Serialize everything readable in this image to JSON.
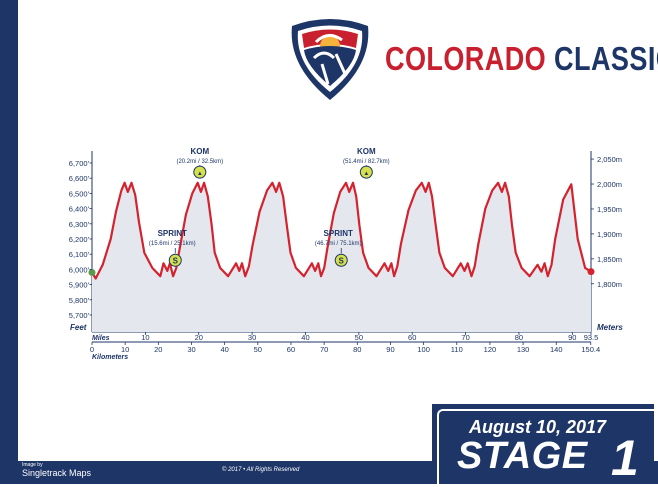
{
  "brand": {
    "word1": "COLORADO",
    "word2": "CLASSIC"
  },
  "stage": {
    "date": "August 10, 2017",
    "label": "STAGE",
    "number": "1"
  },
  "footer": {
    "credit_small": "Image by",
    "credit_brand": "Singletrack Maps",
    "copyright": "© 2017 • All Rights Reserved"
  },
  "colors": {
    "navy": "#1d3567",
    "red": "#d4232e",
    "fill": "#e4e8ee",
    "sprint": "#d6e04a",
    "accent": "#f2b23b"
  },
  "chart_data": {
    "type": "area",
    "left_axis_label": "Feet",
    "right_axis_label": "Meters",
    "x_miles_label": "Miles",
    "x_km_label": "Kilometers",
    "y_feet_range": [
      5700,
      6700
    ],
    "x_miles_range": [
      0,
      93.5
    ],
    "y_ticks_feet": [
      "5,700'",
      "5,800'",
      "5,900'",
      "6,000'",
      "6,100'",
      "6,200'",
      "6,300'",
      "6,400'",
      "6,500'",
      "6,600'",
      "6,700'"
    ],
    "y_tick_feet_values": [
      5700,
      5800,
      5900,
      6000,
      6100,
      6200,
      6300,
      6400,
      6500,
      6600,
      6700
    ],
    "y_ticks_meters": [
      "1,800m",
      "1,850m",
      "1,900m",
      "1,950m",
      "2,000m",
      "2,050m"
    ],
    "y_tick_meter_values": [
      1800,
      1850,
      1900,
      1950,
      2000,
      2050
    ],
    "x_ticks_miles": [
      "10",
      "20",
      "30",
      "40",
      "50",
      "60",
      "70",
      "80",
      "90",
      "93.5"
    ],
    "x_tick_mile_values": [
      10,
      20,
      30,
      40,
      50,
      60,
      70,
      80,
      90,
      93.5
    ],
    "x_ticks_km": [
      "0",
      "10",
      "20",
      "30",
      "40",
      "50",
      "60",
      "70",
      "80",
      "90",
      "100",
      "110",
      "120",
      "130",
      "140",
      "150.4"
    ],
    "x_tick_km_values": [
      0,
      10,
      20,
      30,
      40,
      50,
      60,
      70,
      80,
      90,
      100,
      110,
      120,
      130,
      140,
      150.4
    ],
    "profile": {
      "miles": [
        0,
        0.7,
        2,
        3.5,
        4.5,
        5.5,
        6.1,
        6.7,
        7.4,
        8.1,
        8.8,
        9.8,
        11.3,
        12.8,
        13.4,
        14.1,
        14.6,
        15.2,
        15.8,
        16.4,
        17.6,
        18.8,
        19.8,
        20.4,
        21,
        21.7,
        22.4,
        23,
        24,
        25.5,
        27,
        27.6,
        28.1,
        28.7,
        29.4,
        30.1,
        31.4,
        32.8,
        33.8,
        34.5,
        35.1,
        35.8,
        36.5,
        37.2,
        38.2,
        39.7,
        41.2,
        41.8,
        42.4,
        42.9,
        43.5,
        44.1,
        45.3,
        46.5,
        47.6,
        48.2,
        48.9,
        49.5,
        50.1,
        50.8,
        51.8,
        53.3,
        54.8,
        55.5,
        56.1,
        56.6,
        57.2,
        57.9,
        59.3,
        60.7,
        61.8,
        62.5,
        63.1,
        63.7,
        64.4,
        65.1,
        66.1,
        67.6,
        69.1,
        69.8,
        70.4,
        71.1,
        71.7,
        72.4,
        73.7,
        75,
        76.1,
        76.8,
        77.4,
        78.1,
        78.7,
        79.4,
        80.5,
        82,
        83.5,
        84.2,
        84.8,
        85.4,
        86.1,
        86.8,
        88.3,
        89.8,
        91,
        92.4,
        93.5
      ],
      "feet": [
        5980,
        5940,
        6030,
        6200,
        6380,
        6520,
        6570,
        6510,
        6570,
        6490,
        6310,
        6110,
        6010,
        5955,
        6040,
        5990,
        6040,
        5955,
        6010,
        6130,
        6360,
        6500,
        6570,
        6510,
        6570,
        6480,
        6300,
        6110,
        6010,
        5955,
        6040,
        5990,
        6040,
        5955,
        6020,
        6160,
        6380,
        6520,
        6570,
        6510,
        6570,
        6480,
        6290,
        6110,
        6010,
        5955,
        6040,
        5990,
        6040,
        5955,
        6010,
        6140,
        6370,
        6510,
        6570,
        6510,
        6570,
        6480,
        6290,
        6110,
        6010,
        5955,
        6040,
        5990,
        6040,
        5955,
        6020,
        6170,
        6390,
        6520,
        6570,
        6510,
        6570,
        6480,
        6290,
        6110,
        6010,
        5955,
        6040,
        5990,
        6040,
        5955,
        6020,
        6170,
        6400,
        6520,
        6570,
        6510,
        6570,
        6480,
        6290,
        6110,
        6010,
        5955,
        6030,
        5985,
        6040,
        5955,
        6030,
        6200,
        6460,
        6560,
        6200,
        6010,
        5985
      ]
    },
    "markers": [
      {
        "type": "sprint",
        "symbol": "S",
        "title": "SPRINT",
        "detail": "(15.6mi / 25.1km)",
        "mile": 15.6,
        "feet": 6060
      },
      {
        "type": "kom",
        "symbol": "▲",
        "title": "KOM",
        "detail": "(20.2mi / 32.5km)",
        "mile": 20.2,
        "feet": 6640
      },
      {
        "type": "sprint",
        "symbol": "S",
        "title": "SPRINT",
        "detail": "(46.7mi / 75.1km)",
        "mile": 46.7,
        "feet": 6060
      },
      {
        "type": "kom",
        "symbol": "▲",
        "title": "KOM",
        "detail": "(51.4mi / 82.7km)",
        "mile": 51.4,
        "feet": 6640
      }
    ]
  }
}
